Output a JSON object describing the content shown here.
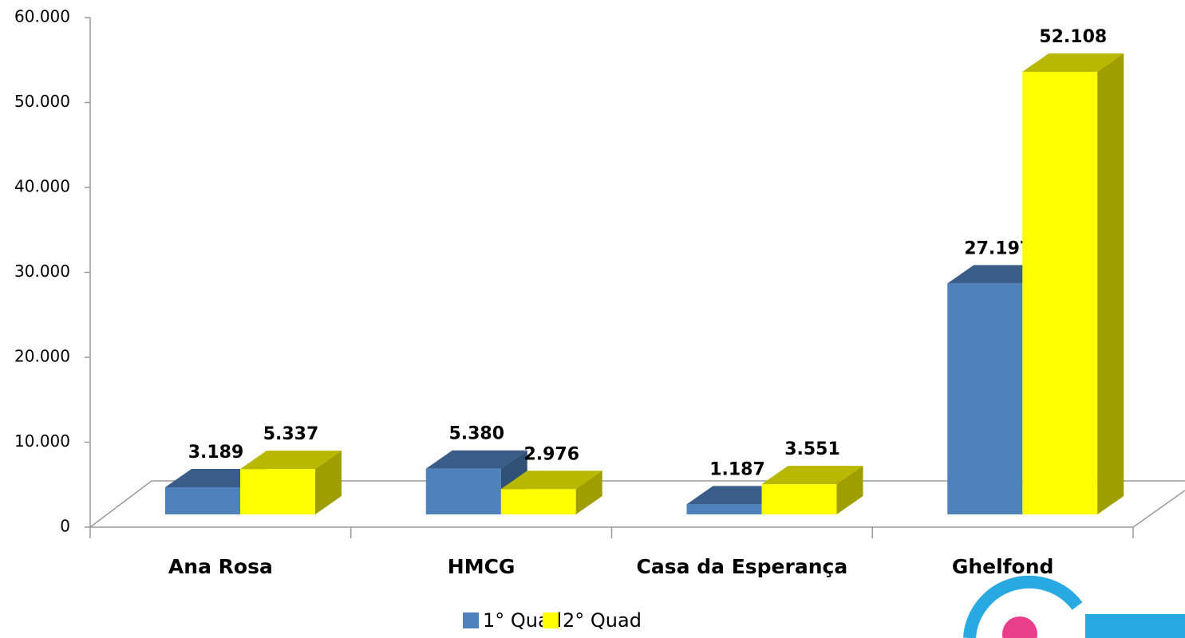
{
  "chart_data": {
    "type": "bar3d",
    "categories": [
      "Ana Rosa",
      "HMCG",
      "Casa da Esperança",
      "Ghelfond"
    ],
    "series": [
      {
        "name": "1° Quad",
        "color": "#4f81bd",
        "values": [
          3189,
          5380,
          1187,
          27197
        ],
        "value_labels": [
          "3.189",
          "5.380",
          "1.187",
          "27.197"
        ]
      },
      {
        "name": "2° Quad",
        "color": "#ffff00",
        "values": [
          5337,
          2976,
          3551,
          52108
        ],
        "value_labels": [
          "5.337",
          "2.976",
          "3.551",
          "52.108"
        ]
      }
    ],
    "ylim": [
      0,
      60000
    ],
    "yticks": [
      0,
      {
        "value": 10000,
        "label": "10.000"
      },
      {
        "value": 20000,
        "label": "20.000"
      },
      {
        "value": 30000,
        "label": "30.000"
      },
      {
        "value": 40000,
        "label": "40.000"
      },
      {
        "value": 50000,
        "label": "50.000"
      },
      {
        "value": 60000,
        "label": "60.000"
      }
    ],
    "legend": "bottom"
  }
}
